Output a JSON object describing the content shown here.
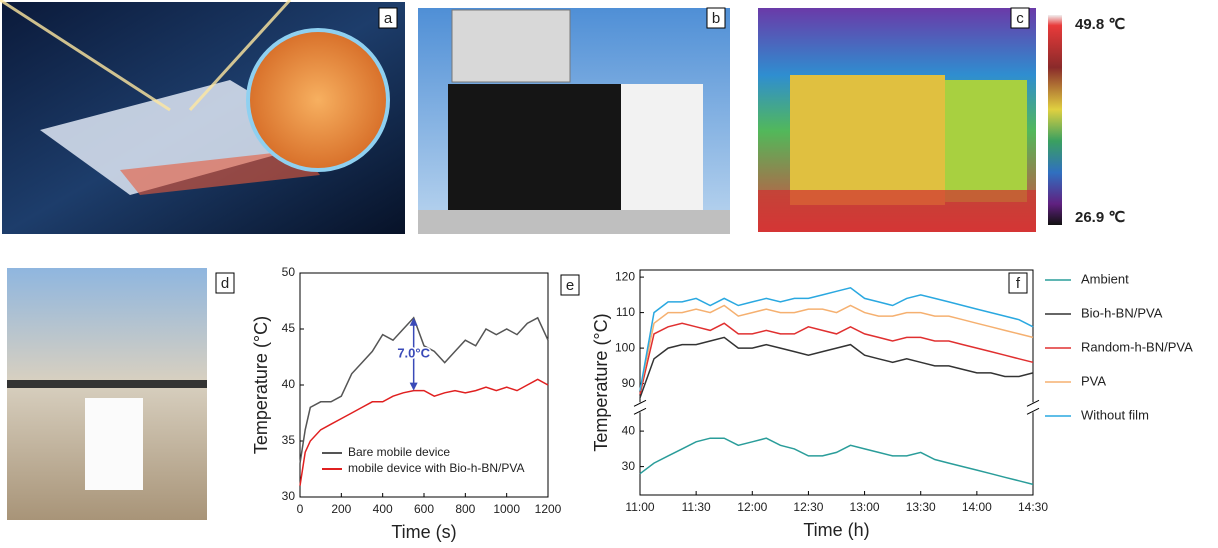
{
  "panel_labels": [
    "a",
    "b",
    "c",
    "d",
    "e",
    "f"
  ],
  "colorbar": {
    "max": "49.8 ℃",
    "min": "26.9 ℃"
  },
  "chart_data": [
    {
      "type": "line",
      "xlabel": "Time (s)",
      "ylabel": "Temperature (°C)",
      "annotation": "7.0°C",
      "x": [
        0,
        25,
        50,
        100,
        150,
        200,
        250,
        300,
        350,
        400,
        450,
        500,
        550,
        600,
        650,
        700,
        750,
        800,
        850,
        900,
        950,
        1000,
        1050,
        1100,
        1150,
        1200
      ],
      "series": [
        {
          "name": "Bare mobile device",
          "color": "#555555",
          "values": [
            33,
            36,
            38,
            38.5,
            38.5,
            39,
            41,
            42,
            43,
            44.5,
            44,
            45,
            46,
            43.5,
            43,
            42,
            43,
            44,
            43.5,
            45,
            44.5,
            45,
            44.5,
            45.5,
            46,
            44
          ]
        },
        {
          "name": "mobile device with Bio-h-BN/PVA",
          "color": "#e02020",
          "values": [
            31,
            34,
            35,
            36,
            36.5,
            37,
            37.5,
            38,
            38.5,
            38.5,
            39,
            39.3,
            39.5,
            39.5,
            39,
            39.3,
            39.5,
            39.3,
            39.5,
            39.8,
            39.5,
            39.8,
            39.5,
            40,
            40.5,
            40
          ]
        }
      ],
      "xlim": [
        0,
        1200
      ],
      "xticks": [
        0,
        200,
        400,
        600,
        800,
        1000,
        1200
      ],
      "ylim": [
        30,
        50
      ],
      "yticks": [
        30,
        35,
        40,
        45,
        50
      ],
      "legend": "lower right"
    },
    {
      "type": "line",
      "xlabel": "Time (h)",
      "ylabel": "Temperature (°C)",
      "x": [
        11,
        11.125,
        11.25,
        11.375,
        11.5,
        11.625,
        11.75,
        11.875,
        12,
        12.125,
        12.25,
        12.375,
        12.5,
        12.625,
        12.75,
        12.875,
        13,
        13.125,
        13.25,
        13.375,
        13.5,
        13.625,
        13.75,
        13.875,
        14,
        14.125,
        14.25,
        14.375,
        14.5
      ],
      "series": [
        {
          "name": "Ambient",
          "color": "#2a9d9a",
          "values": [
            28,
            31,
            33,
            35,
            37,
            38,
            38,
            36,
            37,
            38,
            36,
            35,
            33,
            33,
            34,
            36,
            35,
            34,
            33,
            33,
            34,
            32,
            31,
            30,
            29,
            28,
            27,
            26,
            25
          ]
        },
        {
          "name": "Bio-h-BN/PVA",
          "color": "#333333",
          "values": [
            86,
            97,
            100,
            101,
            101,
            102,
            103,
            100,
            100,
            101,
            100,
            99,
            98,
            99,
            100,
            101,
            98,
            97,
            96,
            97,
            96,
            95,
            95,
            94,
            93,
            93,
            92,
            92,
            93
          ]
        },
        {
          "name": "Random-h-BN/PVA",
          "color": "#e03030",
          "values": [
            87,
            104,
            106,
            107,
            106,
            105,
            107,
            104,
            104,
            105,
            104,
            104,
            106,
            105,
            104,
            106,
            104,
            103,
            102,
            103,
            103,
            102,
            102,
            101,
            100,
            99,
            98,
            97,
            96
          ]
        },
        {
          "name": "PVA",
          "color": "#f5b070",
          "values": [
            88,
            107,
            110,
            110,
            111,
            110,
            112,
            109,
            110,
            111,
            110,
            110,
            111,
            111,
            110,
            112,
            110,
            109,
            109,
            110,
            110,
            109,
            109,
            108,
            107,
            106,
            105,
            104,
            103
          ]
        },
        {
          "name": "Without film",
          "color": "#2aa8e0",
          "values": [
            88,
            110,
            113,
            113,
            114,
            112,
            114,
            112,
            113,
            114,
            113,
            114,
            114,
            115,
            116,
            117,
            114,
            113,
            112,
            114,
            115,
            114,
            113,
            112,
            111,
            110,
            109,
            108,
            106
          ]
        }
      ],
      "xlim": [
        11,
        14.5
      ],
      "xticks": [
        {
          "value": 11,
          "label": "11:00"
        },
        {
          "value": 11.5,
          "label": "11:30"
        },
        {
          "value": 12,
          "label": "12:00"
        },
        {
          "value": 12.5,
          "label": "12:30"
        },
        {
          "value": 13,
          "label": "13:00"
        },
        {
          "value": 13.5,
          "label": "13:30"
        },
        {
          "value": 14,
          "label": "14:00"
        },
        {
          "value": 14.5,
          "label": "14:30"
        }
      ],
      "ylim": [
        22,
        122
      ],
      "ybreak": [
        45,
        85
      ],
      "yticks": [
        30,
        40,
        90,
        100,
        110,
        120
      ],
      "legend": "outside right"
    }
  ]
}
